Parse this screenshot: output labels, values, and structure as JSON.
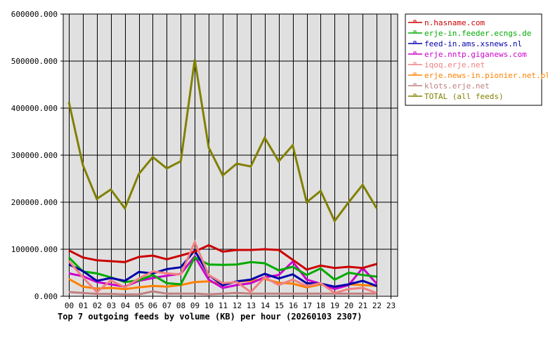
{
  "chart_data": {
    "type": "line",
    "title": "Top 7 outgoing feeds by volume (KB) per hour (20260103 2307)",
    "xlabel": "",
    "ylabel": "",
    "ylim": [
      0,
      600000
    ],
    "yticks": [
      "0.000",
      "100000.000",
      "200000.000",
      "300000.000",
      "400000.000",
      "500000.000",
      "600000.000"
    ],
    "categories": [
      "00",
      "01",
      "02",
      "03",
      "04",
      "05",
      "06",
      "07",
      "08",
      "09",
      "10",
      "11",
      "12",
      "13",
      "14",
      "15",
      "16",
      "17",
      "18",
      "19",
      "20",
      "21",
      "22",
      "23"
    ],
    "grid": true,
    "legend_position": "right",
    "series": [
      {
        "name": "n.hasname.com",
        "color": "#cc0000",
        "values": [
          97500,
          82500,
          76500,
          74600,
          72700,
          83600,
          86600,
          78600,
          86600,
          95000,
          108500,
          95000,
          98500,
          98500,
          100000,
          98500,
          77600,
          56700,
          65200,
          60200,
          62700,
          60200,
          68700
        ]
      },
      {
        "name": "erje-in.feeder.ecngs.de",
        "color": "#00aa00",
        "values": [
          82500,
          52700,
          48700,
          40300,
          30300,
          33800,
          45200,
          27800,
          25400,
          82500,
          67600,
          66700,
          67600,
          72700,
          70100,
          55200,
          62700,
          45200,
          59200,
          35300,
          50200,
          45200,
          41800
        ]
      },
      {
        "name": "feed-in.ams.xsnews.nl",
        "color": "#0000aa",
        "values": [
          67600,
          53700,
          32800,
          38800,
          32800,
          51700,
          48700,
          57700,
          61700,
          97500,
          45200,
          23400,
          31800,
          35300,
          47800,
          37800,
          46700,
          27800,
          26800,
          20400,
          25400,
          32800,
          21900
        ]
      },
      {
        "name": "erje.nntp.giganews.com",
        "color": "#cc00cc",
        "values": [
          48700,
          42700,
          30300,
          25400,
          20400,
          32800,
          38800,
          43700,
          47800,
          85000,
          35300,
          17900,
          23900,
          27800,
          40300,
          45200,
          73600,
          35300,
          26800,
          15400,
          23900,
          60200,
          26800
        ]
      },
      {
        "name": "iqoq.erje.net",
        "color": "#f08080",
        "values": [
          75100,
          40300,
          9000,
          33800,
          18900,
          37800,
          52700,
          48700,
          46300,
          115000,
          45200,
          27800,
          30300,
          9000,
          40300,
          23900,
          35300,
          21900,
          27800,
          7000,
          15400,
          17900,
          7000
        ]
      },
      {
        "name": "erje.news-in.pionier.net.pl",
        "color": "#ff8000",
        "values": [
          36800,
          20400,
          16400,
          17900,
          15400,
          18900,
          21900,
          20400,
          23900,
          30300,
          31800,
          25400,
          31300,
          32800,
          36800,
          28800,
          26800,
          18900,
          25400,
          17900,
          25400,
          23900,
          21900
        ]
      },
      {
        "name": "klots.erje.net",
        "color": "#c08080",
        "values": [
          9000,
          7000,
          5000,
          5000,
          4000,
          4000,
          10400,
          5500,
          5500,
          5500,
          4000,
          5500,
          7000,
          5500,
          5500,
          5500,
          5500,
          5500,
          5500,
          5500,
          5500,
          5500,
          5500
        ]
      },
      {
        "name": "TOTAL (all feeds)",
        "color": "#808000",
        "values": [
          413000,
          279000,
          207000,
          227000,
          187000,
          260000,
          296000,
          272000,
          287000,
          503000,
          316000,
          257000,
          282000,
          276000,
          337000,
          287000,
          321000,
          200000,
          224000,
          160000,
          200000,
          237000,
          187000
        ]
      }
    ]
  },
  "colors": {
    "plot_background": "#e0e0e0",
    "grid": "#000000",
    "page_background": "#ffffff"
  }
}
